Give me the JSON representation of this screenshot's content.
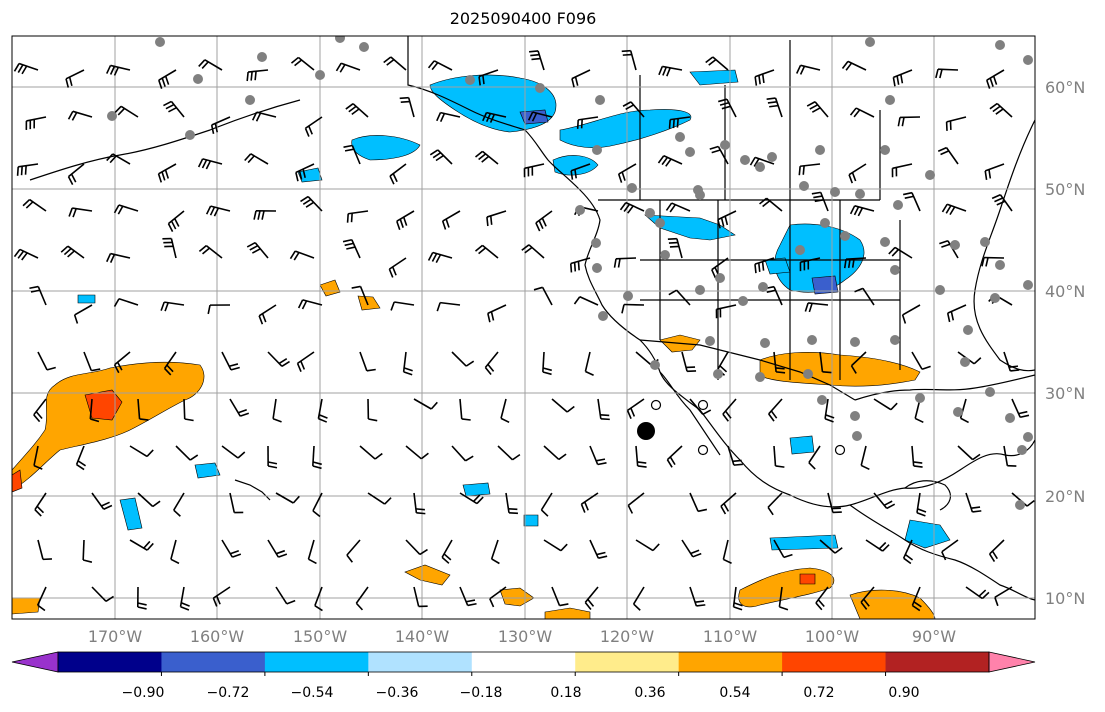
{
  "title": "2025090400 F096",
  "map": {
    "lat_labels": [
      "60°N",
      "50°N",
      "40°N",
      "30°N",
      "20°N",
      "10°N"
    ],
    "lon_labels": [
      "170°W",
      "160°W",
      "150°W",
      "140°W",
      "130°W",
      "120°W",
      "110°W",
      "100°W",
      "90°W"
    ]
  },
  "colorbar": {
    "colors": [
      "#9932cc",
      "#00008b",
      "#3a5fcd",
      "#00bfff",
      "#b0e2ff",
      "#ffffff",
      "#ffec8b",
      "#ffa500",
      "#ff4500",
      "#b22222",
      "#ff82ab"
    ],
    "tick_labels": [
      "−0.90",
      "−0.72",
      "−0.54",
      "−0.36",
      "−0.18",
      "0.18",
      "0.36",
      "0.54",
      "0.72",
      "0.90"
    ]
  },
  "anomaly_colors": {
    "positive_light": "#ffa500",
    "positive_strong": "#ff4500",
    "negative_light": "#00bfff",
    "negative_strong": "#3a5fcd",
    "station_gray": "#808080"
  }
}
